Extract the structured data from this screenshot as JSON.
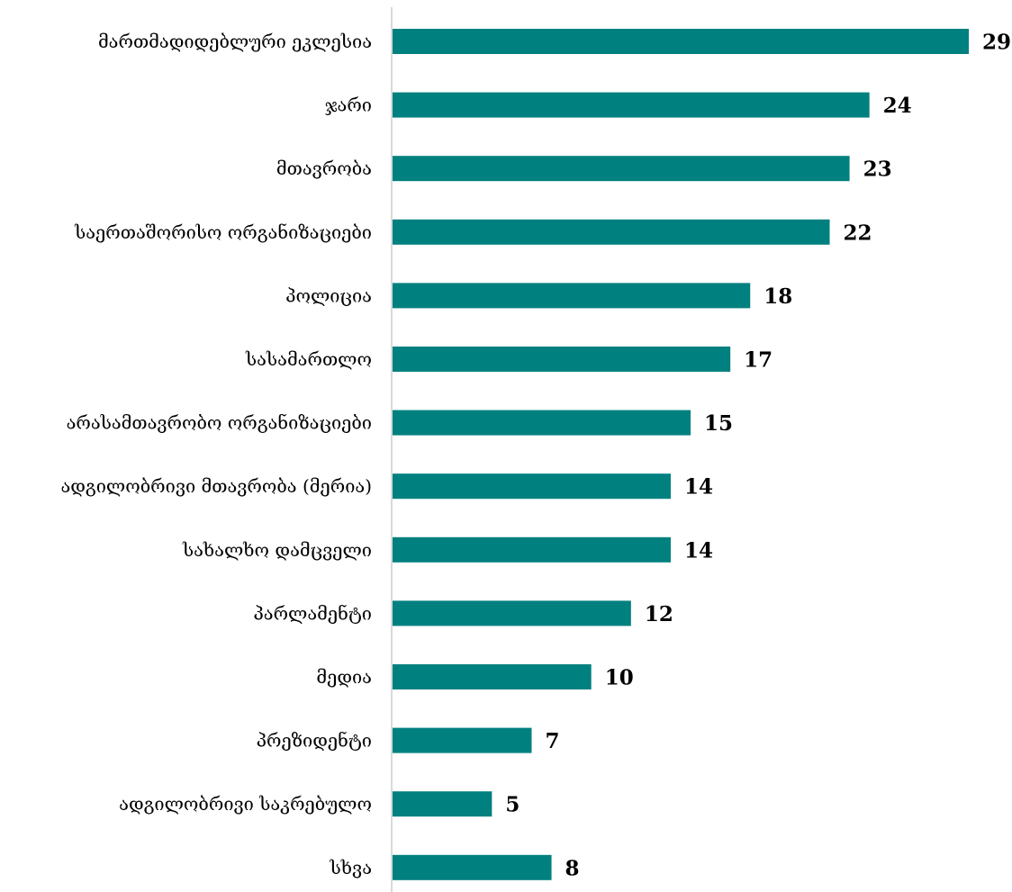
{
  "chart_data": {
    "type": "bar",
    "orientation": "horizontal",
    "categories": [
      "მართმადიდებლური ეკლესია",
      "ჯარი",
      "მთავრობა",
      "საერთაშორისო ორგანიზაციები",
      "პოლიცია",
      "სასამართლო",
      "არასამთავრობო ორგანიზაციები",
      "ადგილობრივი მთავრობა (მერია)",
      "სახალხო დამცველი",
      "პარლამენტი",
      "მედია",
      "პრეზიდენტი",
      "ადგილობრივი საკრებულო",
      "სხვა"
    ],
    "values": [
      29,
      24,
      23,
      22,
      18,
      17,
      15,
      14,
      14,
      12,
      10,
      7,
      5,
      8
    ],
    "data_labels": [
      "29",
      "24",
      "23",
      "22",
      "18",
      "17",
      "15",
      "14",
      "14",
      "12",
      "10",
      "7",
      "5",
      "8"
    ],
    "xlim": [
      0,
      29
    ],
    "grid": false,
    "legend": "none",
    "colors": {
      "bar": "#00807f",
      "axis": "#d9d9d9",
      "text": "#000000"
    }
  }
}
